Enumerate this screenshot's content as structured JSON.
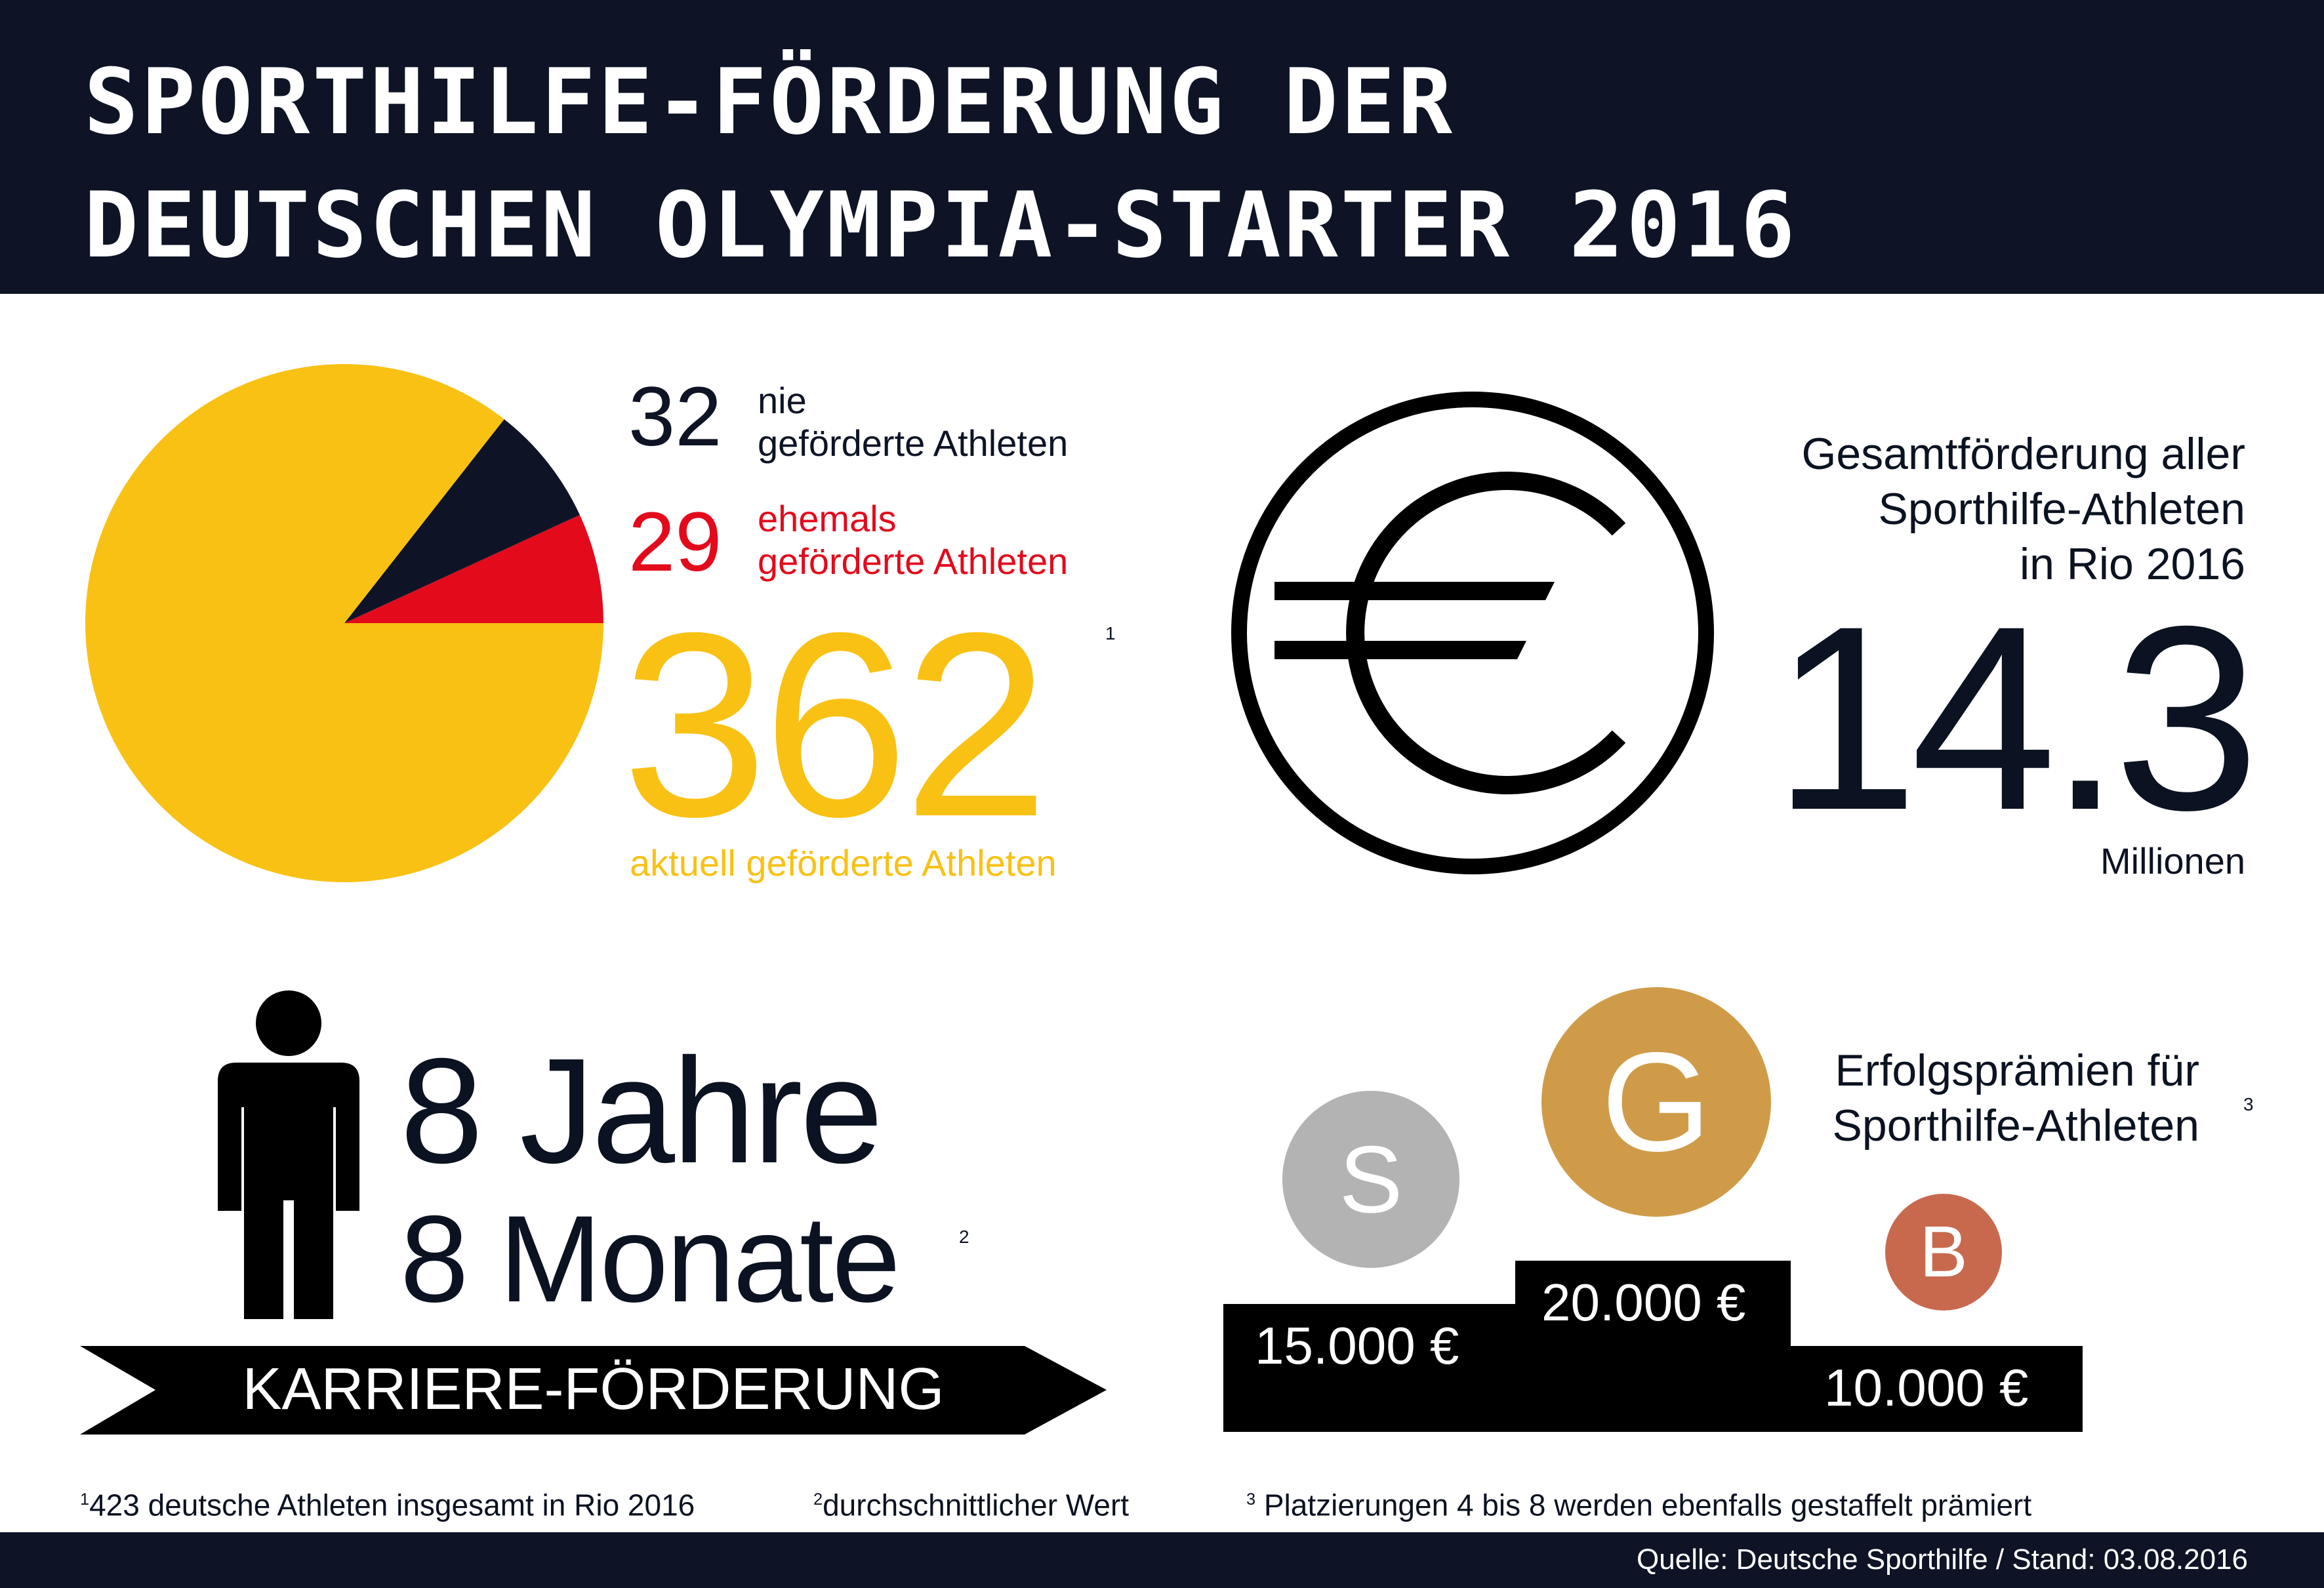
{
  "title": {
    "line1": "SPORTHILFE-FÖRDERUNG DER",
    "line2": "DEUTSCHEN OLYMPIA-STARTER 2016"
  },
  "chart_data": {
    "type": "pie",
    "slices": [
      {
        "label_num": "362",
        "label_text": "aktuell geförderte Athleten",
        "value": 362,
        "color": "#f9c113",
        "footnote": "1"
      },
      {
        "label_num": "32",
        "label_text_1": "nie",
        "label_text_2": "geförderte Athleten",
        "value": 32,
        "color": "#0e1426"
      },
      {
        "label_num": "29",
        "label_text_1": "ehemals",
        "label_text_2": "geförderte Athleten",
        "value": 29,
        "color": "#e30a1c"
      }
    ]
  },
  "funding": {
    "line1": "Gesamtförderung aller",
    "line2": "Sporthilfe-Athleten",
    "line3": "in Rio 2016",
    "amount": "14.3",
    "unit": "Millionen",
    "icon": "euro-icon"
  },
  "career": {
    "years": "8 Jahre",
    "months": "8 Monate",
    "months_footnote": "2",
    "banner": "KARRIERE-FÖRDERUNG",
    "icon": "person-icon"
  },
  "bonus": {
    "title_line1": "Erfolgsprämien für",
    "title_line2": "Sporthilfe-Athleten",
    "title_footnote": "3",
    "medals": [
      {
        "letter": "S",
        "amount": "15.000 €",
        "color": "#b3b3b3"
      },
      {
        "letter": "G",
        "amount": "20.000 €",
        "color": "#d09b49"
      },
      {
        "letter": "B",
        "amount": "10.000 €",
        "color": "#c8694e"
      }
    ]
  },
  "footnotes": {
    "f1_mark": "1",
    "f1_text": "423 deutsche Athleten insgesamt in Rio 2016",
    "f2_mark": "2",
    "f2_text": "durchschnittlicher Wert",
    "f3_mark": "3",
    "f3_text": "Platzierungen 4 bis 8 werden ebenfalls gestaffelt prämiert"
  },
  "source": "Quelle: Deutsche Sporthilfe / Stand: 03.08.2016"
}
